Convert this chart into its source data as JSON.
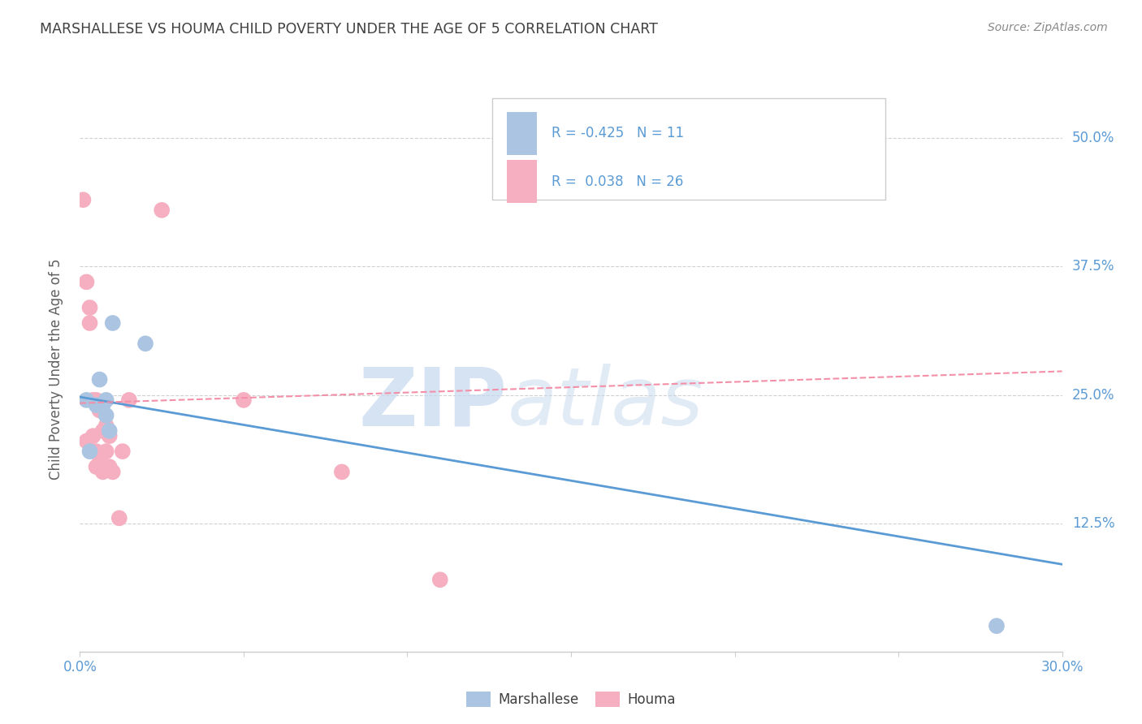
{
  "title": "MARSHALLESE VS HOUMA CHILD POVERTY UNDER THE AGE OF 5 CORRELATION CHART",
  "source": "Source: ZipAtlas.com",
  "ylabel": "Child Poverty Under the Age of 5",
  "ytick_labels": [
    "",
    "12.5%",
    "25.0%",
    "37.5%",
    "50.0%"
  ],
  "ytick_values": [
    0.0,
    0.125,
    0.25,
    0.375,
    0.5
  ],
  "xlim": [
    0.0,
    0.3
  ],
  "ylim": [
    0.0,
    0.55
  ],
  "legend_R_marshallese": "-0.425",
  "legend_N_marshallese": "11",
  "legend_R_houma": "0.038",
  "legend_N_houma": "26",
  "marshallese_color": "#aac4e2",
  "houma_color": "#f5afc0",
  "marshallese_line_color": "#5b9bd5",
  "houma_line_color": "#f48fa8",
  "watermark_zip": "ZIP",
  "watermark_atlas": "atlas",
  "marshallese_scatter_x": [
    0.002,
    0.003,
    0.005,
    0.006,
    0.007,
    0.008,
    0.008,
    0.009,
    0.01,
    0.02,
    0.28
  ],
  "marshallese_scatter_y": [
    0.245,
    0.195,
    0.24,
    0.265,
    0.24,
    0.245,
    0.23,
    0.215,
    0.32,
    0.3,
    0.025
  ],
  "houma_scatter_x": [
    0.001,
    0.002,
    0.002,
    0.003,
    0.003,
    0.004,
    0.004,
    0.005,
    0.005,
    0.005,
    0.006,
    0.006,
    0.007,
    0.007,
    0.008,
    0.008,
    0.009,
    0.009,
    0.01,
    0.012,
    0.013,
    0.015,
    0.025,
    0.05,
    0.08,
    0.11
  ],
  "houma_scatter_y": [
    0.44,
    0.36,
    0.205,
    0.335,
    0.32,
    0.245,
    0.21,
    0.245,
    0.195,
    0.18,
    0.235,
    0.19,
    0.215,
    0.175,
    0.22,
    0.195,
    0.21,
    0.18,
    0.175,
    0.13,
    0.195,
    0.245,
    0.43,
    0.245,
    0.175,
    0.07
  ],
  "marshallese_trend_x": [
    0.0,
    0.3
  ],
  "marshallese_trend_y": [
    0.248,
    0.085
  ],
  "houma_trend_x": [
    0.0,
    0.3
  ],
  "houma_trend_y": [
    0.242,
    0.273
  ],
  "background_color": "#ffffff",
  "grid_color": "#cccccc",
  "title_color": "#404040",
  "ylabel_color": "#606060",
  "tick_color": "#5b9bd5",
  "right_ytick_color": "#5b9bd5",
  "legend_text_color": "#5b9bd5"
}
